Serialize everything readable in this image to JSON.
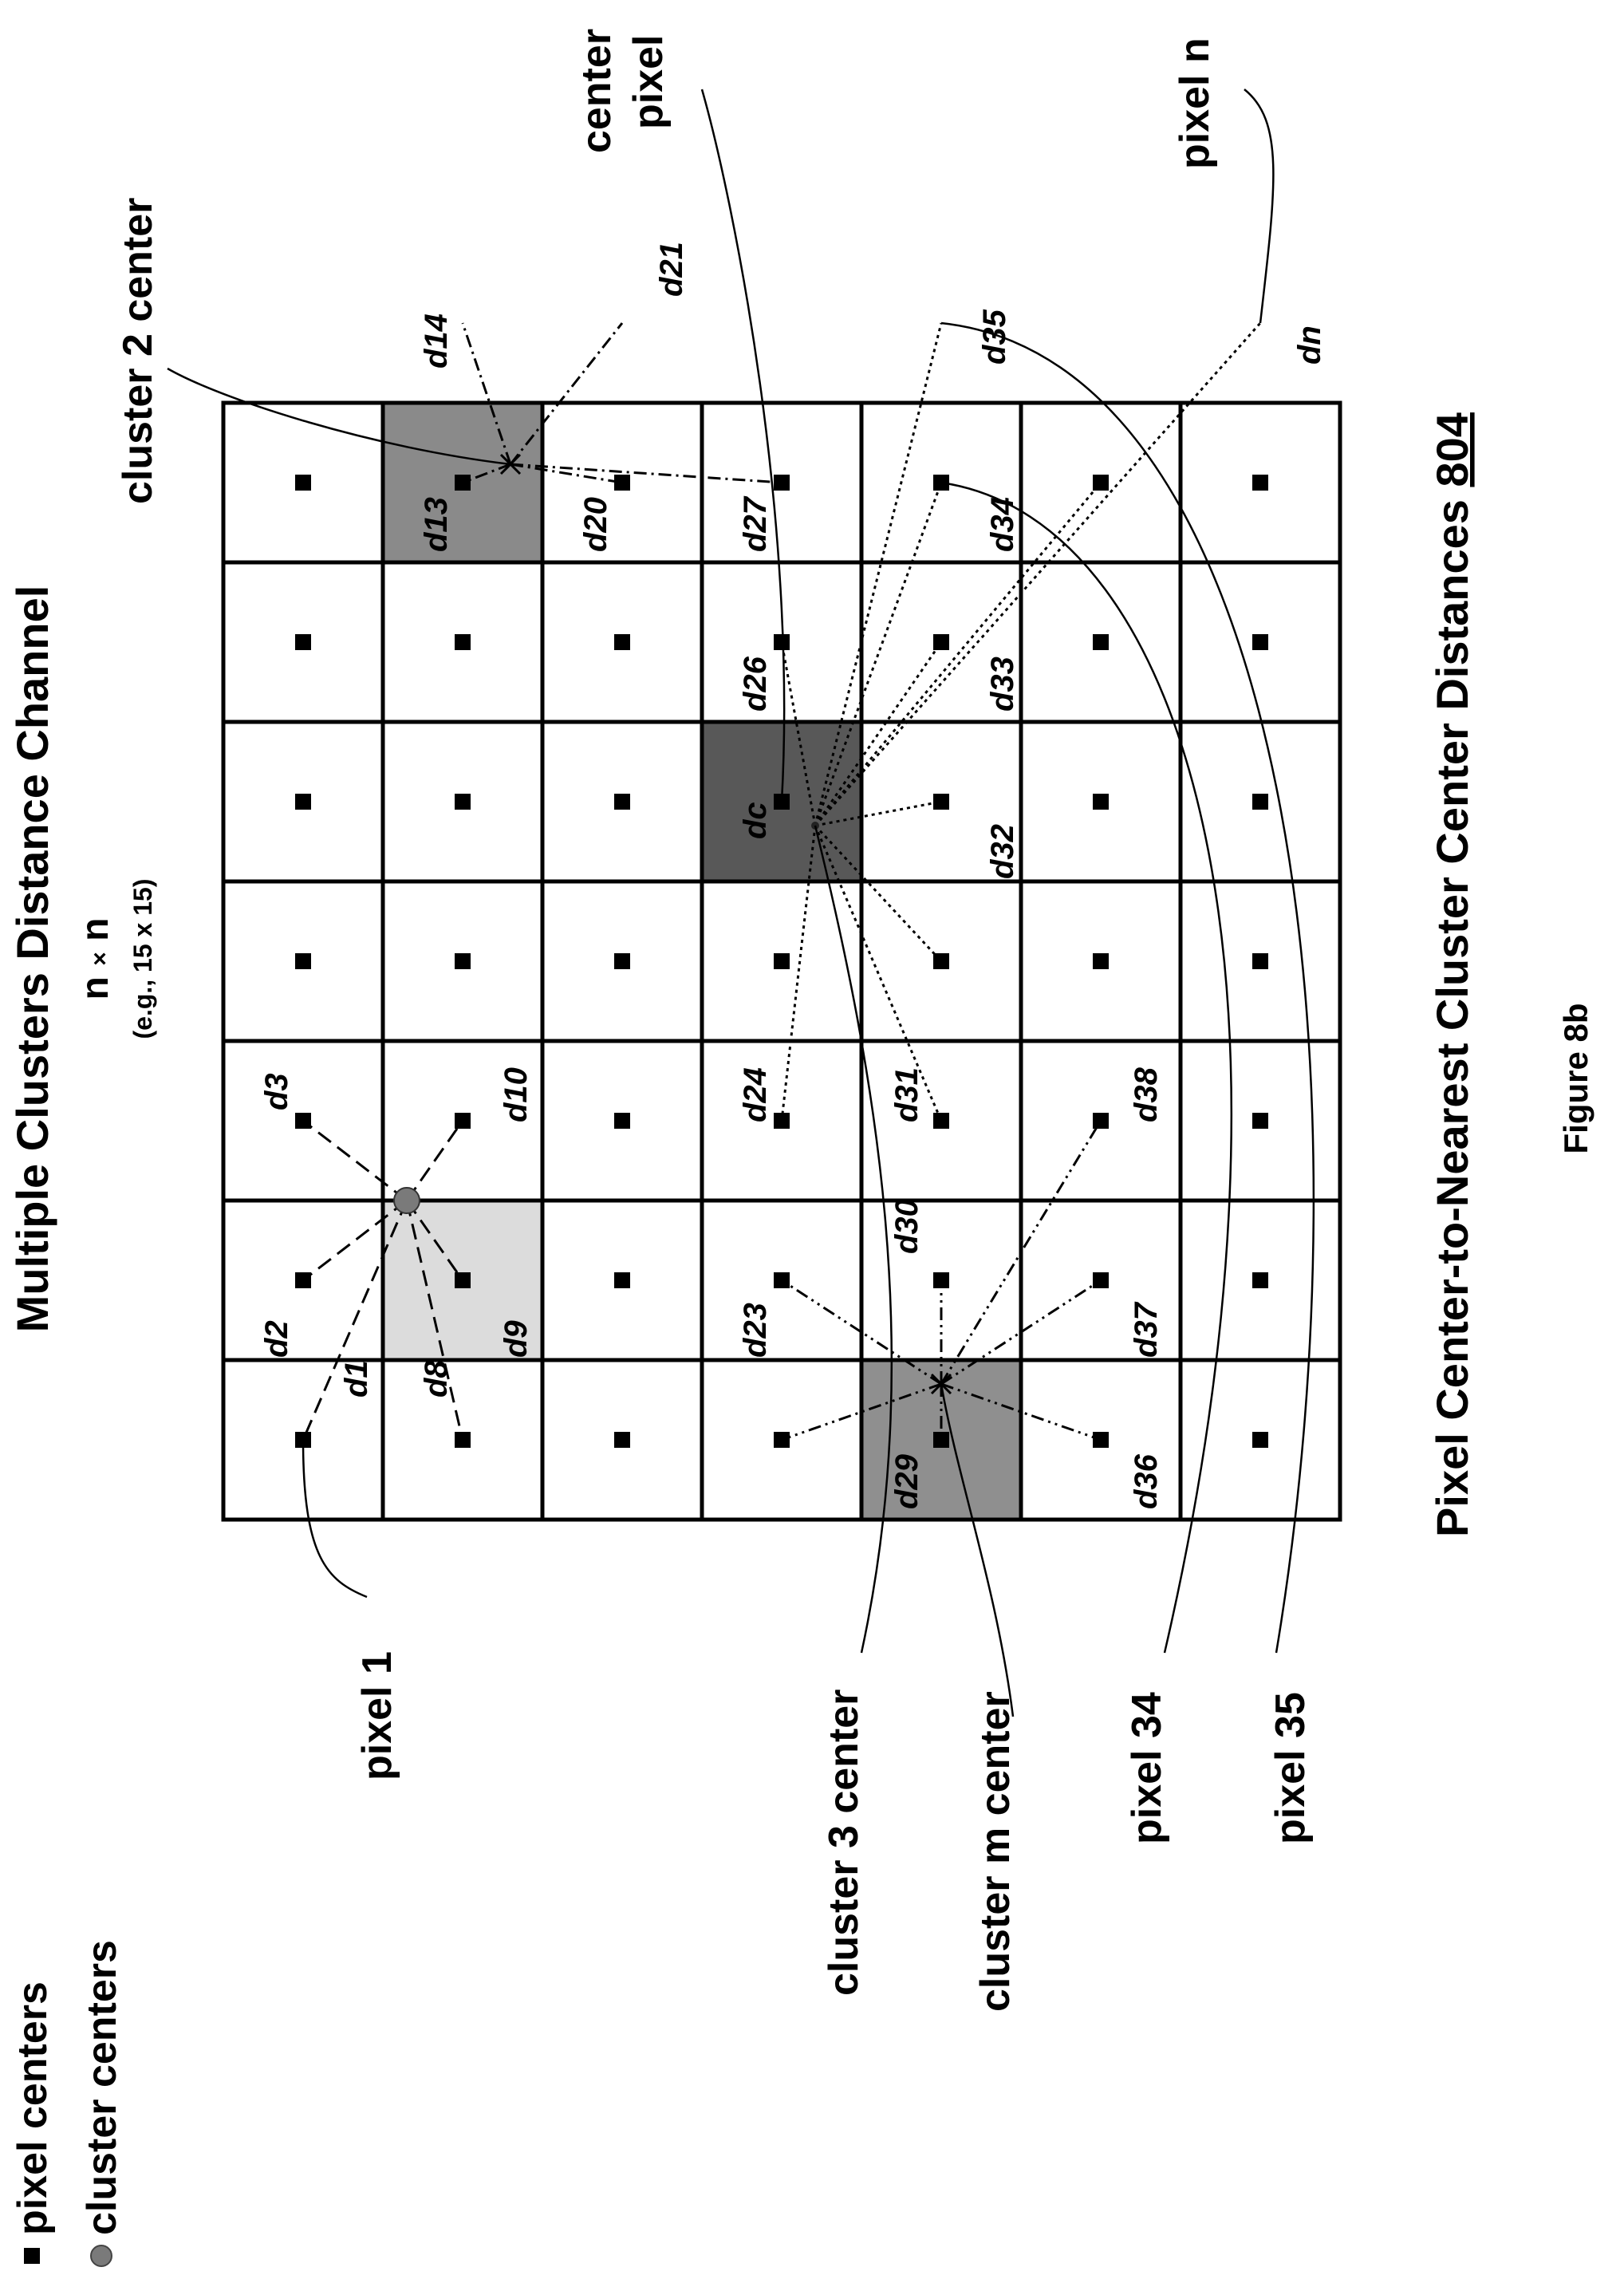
{
  "figure": {
    "title": "Multiple Clusters Distance Channel",
    "size_label": "n",
    "size_times": "×",
    "size_example": "(e.g., 15 x 15)",
    "caption": "Pixel Center-to-Nearest Cluster Center Distances",
    "caption_ref": "804",
    "figure_label": "Figure 8b"
  },
  "legend": {
    "items": [
      {
        "marker": "square",
        "label": "pixel centers"
      },
      {
        "marker": "circle",
        "label": "cluster centers"
      }
    ]
  },
  "callouts": {
    "cluster_2_center": "cluster 2 center",
    "center_pixel_line1": "center",
    "center_pixel_line2": "pixel",
    "pixel_n": "pixel n",
    "pixel_1": "pixel 1",
    "cluster_3_center": "cluster 3 center",
    "cluster_m_center": "cluster m center",
    "pixel_34": "pixel 34",
    "pixel_35": "pixel 35"
  },
  "distance_labels": {
    "d1": "d1",
    "d2": "d2",
    "d3": "d3",
    "d8": "d8",
    "d9": "d9",
    "d10": "d10",
    "d13": "d13",
    "d14": "d14",
    "d20": "d20",
    "d21": "d21",
    "d23": "d23",
    "d24": "d24",
    "dc": "dc",
    "d26": "d26",
    "d27": "d27",
    "d29": "d29",
    "d30": "d30",
    "d31": "d31",
    "d32": "d32",
    "d33": "d33",
    "d34": "d34",
    "d35": "d35",
    "d36": "d36",
    "d37": "d37",
    "d38": "d38",
    "dn": "dn"
  },
  "colors": {
    "grid": "#000000",
    "cluster_1_cell": "#dcdcdc",
    "cluster_2_cell": "#8a8a8a",
    "center_cell": "#585858",
    "cluster_m_cell": "#8f8f8f",
    "cluster_dot": "#7a7a7a"
  }
}
